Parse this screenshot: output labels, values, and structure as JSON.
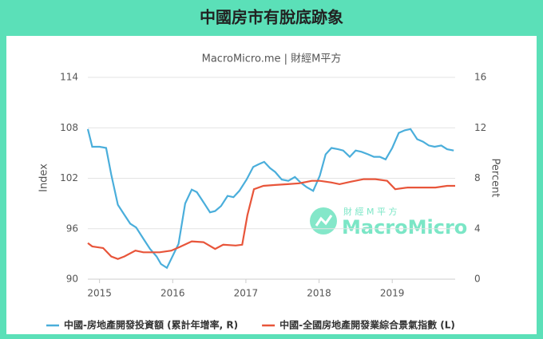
{
  "chart_data": {
    "type": "line",
    "title": "中國房市有脫底跡象",
    "subtitle": "MacroMicro.me | 財經M平方",
    "watermark": "MacroMicro",
    "watermark_cn": "財 經 M 平 方",
    "ylabel": "Index",
    "y2label": "Percent",
    "xlim": [
      2014.84,
      2019.86
    ],
    "xticks": [
      2015,
      2016,
      2017,
      2018,
      2019
    ],
    "ylim": [
      90,
      114
    ],
    "yticks": [
      90,
      96,
      102,
      108,
      114
    ],
    "y2lim": [
      0,
      16
    ],
    "y2ticks": [
      0,
      4,
      8,
      12,
      16
    ],
    "grid": true,
    "legend": "bottom",
    "series": [
      {
        "name": "中國-房地產開發投資額 (累計年增率, R)",
        "color": "#4aaedb",
        "axis": "y2",
        "x": [
          2014.84,
          2014.9,
          2015.0,
          2015.09,
          2015.16,
          2015.25,
          2015.34,
          2015.42,
          2015.5,
          2015.6,
          2015.69,
          2015.78,
          2015.84,
          2015.92,
          2016.08,
          2016.17,
          2016.26,
          2016.33,
          2016.42,
          2016.51,
          2016.58,
          2016.66,
          2016.75,
          2016.83,
          2016.91,
          2017.01,
          2017.1,
          2017.17,
          2017.25,
          2017.33,
          2017.4,
          2017.49,
          2017.58,
          2017.67,
          2017.74,
          2017.83,
          2017.92,
          2018.01,
          2018.09,
          2018.17,
          2018.26,
          2018.33,
          2018.42,
          2018.5,
          2018.58,
          2018.67,
          2018.75,
          2018.83,
          2018.91,
          2019.0,
          2019.09,
          2019.17,
          2019.25,
          2019.34,
          2019.42,
          2019.5,
          2019.58,
          2019.67,
          2019.75,
          2019.84
        ],
        "values": [
          11.9,
          10.5,
          10.5,
          10.4,
          8.3,
          5.9,
          5.1,
          4.4,
          4.1,
          3.2,
          2.4,
          1.8,
          1.2,
          0.9,
          2.8,
          6.0,
          7.1,
          6.9,
          6.1,
          5.3,
          5.4,
          5.8,
          6.6,
          6.5,
          7.0,
          7.9,
          8.9,
          9.1,
          9.3,
          8.8,
          8.5,
          7.9,
          7.8,
          8.1,
          7.7,
          7.3,
          7.0,
          8.2,
          9.9,
          10.4,
          10.3,
          10.2,
          9.7,
          10.2,
          10.1,
          9.9,
          9.7,
          9.7,
          9.5,
          10.4,
          11.6,
          11.8,
          11.9,
          11.1,
          10.9,
          10.6,
          10.5,
          10.6,
          10.3,
          10.2
        ]
      },
      {
        "name": "中國-全國房地產開發業綜合景氣指數 (L)",
        "color": "#e8553a",
        "axis": "y",
        "x": [
          2014.84,
          2014.9,
          2015.05,
          2015.16,
          2015.25,
          2015.34,
          2015.49,
          2015.6,
          2015.82,
          2015.98,
          2016.09,
          2016.26,
          2016.42,
          2016.58,
          2016.69,
          2016.86,
          2016.95,
          2017.02,
          2017.11,
          2017.24,
          2017.4,
          2017.57,
          2017.73,
          2017.9,
          2018.01,
          2018.17,
          2018.28,
          2018.44,
          2018.61,
          2018.77,
          2018.93,
          2019.04,
          2019.21,
          2019.43,
          2019.59,
          2019.75,
          2019.86
        ],
        "values": [
          94.3,
          93.9,
          93.7,
          92.7,
          92.4,
          92.7,
          93.4,
          93.2,
          93.2,
          93.4,
          93.8,
          94.5,
          94.4,
          93.6,
          94.1,
          94.0,
          94.1,
          97.6,
          100.7,
          101.1,
          101.2,
          101.3,
          101.4,
          101.7,
          101.7,
          101.5,
          101.3,
          101.6,
          101.9,
          101.9,
          101.7,
          100.7,
          100.9,
          100.9,
          100.9,
          101.1,
          101.1
        ]
      }
    ]
  }
}
